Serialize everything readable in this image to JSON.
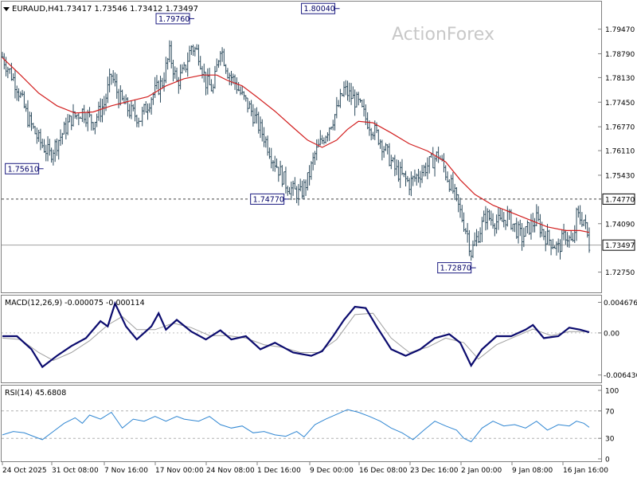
{
  "header": {
    "symbol_text": "EURAUD,H4",
    "ohlc_text": "1.73417 1.73546 1.73412 1.73497",
    "watermark": "ActionForex"
  },
  "colors": {
    "candles": "#2b4a5c",
    "ma": "#d21f1f",
    "macd_line": "#0b0b6e",
    "macd_signal": "#a0a0a0",
    "rsi": "#2f86d2",
    "frame": "#808080",
    "label_border": "#1a1a80"
  },
  "chart_data": [
    {
      "id": "price",
      "type": "candlestick",
      "yticks": [
        "1.79470",
        "1.78790",
        "1.78130",
        "1.77450",
        "1.76770",
        "1.76110",
        "1.75430",
        "1.74770",
        "1.74090",
        "1.73497",
        "1.72750"
      ],
      "ylim": [
        1.723,
        1.801
      ],
      "annotations": [
        {
          "text": "1.79760",
          "value": 1.7976,
          "position": "left"
        },
        {
          "text": "1.80040",
          "value": 1.8004,
          "position": "left"
        },
        {
          "text": "1.75610",
          "value": 1.7561,
          "position": "left"
        },
        {
          "text": "1.74770",
          "value": 1.7477,
          "position": "left"
        },
        {
          "text": "1.72870",
          "value": 1.7287,
          "position": "left"
        }
      ],
      "levels": [
        {
          "value": 1.7477,
          "label": "1.74770",
          "style": "dashed"
        },
        {
          "value": 1.73497,
          "label": "1.73497",
          "style": "solid"
        }
      ],
      "close_path": [
        [
          0,
          1.787
        ],
        [
          4,
          1.783
        ],
        [
          8,
          1.779
        ],
        [
          14,
          1.77
        ],
        [
          20,
          1.764
        ],
        [
          26,
          1.76
        ],
        [
          32,
          1.765
        ],
        [
          38,
          1.77
        ],
        [
          44,
          1.772
        ],
        [
          50,
          1.769
        ],
        [
          56,
          1.774
        ],
        [
          60,
          1.782
        ],
        [
          64,
          1.776
        ],
        [
          70,
          1.772
        ],
        [
          76,
          1.77
        ],
        [
          82,
          1.776
        ],
        [
          88,
          1.78
        ],
        [
          92,
          1.788
        ],
        [
          96,
          1.78
        ],
        [
          100,
          1.783
        ],
        [
          104,
          1.79
        ],
        [
          108,
          1.788
        ],
        [
          112,
          1.78
        ],
        [
          116,
          1.778
        ],
        [
          120,
          1.79
        ],
        [
          124,
          1.783
        ],
        [
          128,
          1.78
        ],
        [
          132,
          1.776
        ],
        [
          136,
          1.773
        ],
        [
          140,
          1.769
        ],
        [
          144,
          1.765
        ],
        [
          148,
          1.76
        ],
        [
          152,
          1.756
        ],
        [
          156,
          1.752
        ],
        [
          160,
          1.75
        ],
        [
          164,
          1.749
        ],
        [
          168,
          1.753
        ],
        [
          172,
          1.76
        ],
        [
          176,
          1.764
        ],
        [
          180,
          1.768
        ],
        [
          184,
          1.772
        ],
        [
          188,
          1.778
        ],
        [
          192,
          1.776
        ],
        [
          196,
          1.774
        ],
        [
          200,
          1.77
        ],
        [
          204,
          1.767
        ],
        [
          208,
          1.764
        ],
        [
          212,
          1.76
        ],
        [
          216,
          1.756
        ],
        [
          220,
          1.754
        ],
        [
          224,
          1.752
        ],
        [
          228,
          1.754
        ],
        [
          232,
          1.756
        ],
        [
          236,
          1.758
        ],
        [
          240,
          1.76
        ],
        [
          244,
          1.755
        ],
        [
          248,
          1.75
        ],
        [
          252,
          1.744
        ],
        [
          256,
          1.738
        ],
        [
          258,
          1.733
        ],
        [
          262,
          1.738
        ],
        [
          266,
          1.743
        ],
        [
          270,
          1.742
        ],
        [
          274,
          1.741
        ],
        [
          278,
          1.743
        ],
        [
          282,
          1.74
        ],
        [
          286,
          1.737
        ],
        [
          290,
          1.74
        ],
        [
          294,
          1.742
        ],
        [
          298,
          1.738
        ],
        [
          302,
          1.736
        ],
        [
          306,
          1.734
        ],
        [
          310,
          1.738
        ],
        [
          314,
          1.735
        ],
        [
          316,
          1.743
        ],
        [
          320,
          1.742
        ],
        [
          323,
          1.735
        ]
      ],
      "moving_average": [
        [
          0,
          1.7868
        ],
        [
          10,
          1.782
        ],
        [
          20,
          1.777
        ],
        [
          30,
          1.7735
        ],
        [
          40,
          1.7715
        ],
        [
          50,
          1.7718
        ],
        [
          60,
          1.7735
        ],
        [
          70,
          1.7748
        ],
        [
          80,
          1.776
        ],
        [
          90,
          1.779
        ],
        [
          100,
          1.781
        ],
        [
          110,
          1.782
        ],
        [
          118,
          1.782
        ],
        [
          124,
          1.7805
        ],
        [
          132,
          1.779
        ],
        [
          140,
          1.776
        ],
        [
          150,
          1.772
        ],
        [
          160,
          1.7675
        ],
        [
          168,
          1.764
        ],
        [
          176,
          1.762
        ],
        [
          184,
          1.764
        ],
        [
          190,
          1.767
        ],
        [
          196,
          1.7692
        ],
        [
          204,
          1.7688
        ],
        [
          214,
          1.766
        ],
        [
          224,
          1.763
        ],
        [
          234,
          1.761
        ],
        [
          244,
          1.758
        ],
        [
          252,
          1.753
        ],
        [
          260,
          1.749
        ],
        [
          270,
          1.746
        ],
        [
          280,
          1.744
        ],
        [
          290,
          1.742
        ],
        [
          300,
          1.74
        ],
        [
          310,
          1.739
        ],
        [
          318,
          1.739
        ],
        [
          323,
          1.7385
        ]
      ]
    },
    {
      "id": "macd",
      "type": "line",
      "title": "MACD(12,26,9) -0.000075 -0.000114",
      "yticks": [
        "0.004676",
        "0.00",
        "-0.006436"
      ],
      "ylim": [
        -0.0072,
        0.0051
      ],
      "series": [
        {
          "name": "MACD",
          "points": [
            [
              0,
              -0.0005
            ],
            [
              8,
              -0.0005
            ],
            [
              16,
              -0.0025
            ],
            [
              22,
              -0.0052
            ],
            [
              30,
              -0.0035
            ],
            [
              38,
              -0.002
            ],
            [
              46,
              -0.0008
            ],
            [
              54,
              0.0018
            ],
            [
              58,
              0.001
            ],
            [
              62,
              0.0045
            ],
            [
              68,
              0.001
            ],
            [
              74,
              -0.001
            ],
            [
              82,
              0.001
            ],
            [
              86,
              0.003
            ],
            [
              90,
              0.0005
            ],
            [
              96,
              0.002
            ],
            [
              104,
              0.0002
            ],
            [
              112,
              -0.001
            ],
            [
              120,
              0.0004
            ],
            [
              126,
              -0.001
            ],
            [
              134,
              -0.0005
            ],
            [
              142,
              -0.0025
            ],
            [
              150,
              -0.0015
            ],
            [
              160,
              -0.003
            ],
            [
              170,
              -0.0035
            ],
            [
              176,
              -0.0028
            ],
            [
              182,
              -0.0005
            ],
            [
              188,
              0.002
            ],
            [
              194,
              0.004
            ],
            [
              200,
              0.0038
            ],
            [
              206,
              0.001
            ],
            [
              214,
              -0.0025
            ],
            [
              222,
              -0.0035
            ],
            [
              230,
              -0.0025
            ],
            [
              238,
              -0.0008
            ],
            [
              246,
              -0.0002
            ],
            [
              252,
              -0.0015
            ],
            [
              258,
              -0.005
            ],
            [
              264,
              -0.0025
            ],
            [
              272,
              -0.0005
            ],
            [
              280,
              -0.0005
            ],
            [
              288,
              0.0005
            ],
            [
              292,
              0.0012
            ],
            [
              298,
              -0.0008
            ],
            [
              306,
              -0.0005
            ],
            [
              312,
              0.0008
            ],
            [
              318,
              0.0005
            ],
            [
              323,
              0.0001
            ]
          ]
        },
        {
          "name": "Signal",
          "points": [
            [
              0,
              -0.0008
            ],
            [
              10,
              -0.001
            ],
            [
              20,
              -0.003
            ],
            [
              28,
              -0.0042
            ],
            [
              38,
              -0.003
            ],
            [
              48,
              -0.0012
            ],
            [
              58,
              0.0012
            ],
            [
              66,
              0.0025
            ],
            [
              74,
              0.0005
            ],
            [
              84,
              0.0005
            ],
            [
              94,
              0.0015
            ],
            [
              104,
              0.0008
            ],
            [
              114,
              -0.0004
            ],
            [
              124,
              -0.0004
            ],
            [
              134,
              -0.0008
            ],
            [
              144,
              -0.0018
            ],
            [
              154,
              -0.0022
            ],
            [
              164,
              -0.003
            ],
            [
              174,
              -0.003
            ],
            [
              184,
              -0.001
            ],
            [
              194,
              0.0028
            ],
            [
              204,
              0.003
            ],
            [
              214,
              -0.0008
            ],
            [
              224,
              -0.003
            ],
            [
              234,
              -0.0022
            ],
            [
              244,
              -0.0008
            ],
            [
              254,
              -0.0015
            ],
            [
              262,
              -0.004
            ],
            [
              272,
              -0.0018
            ],
            [
              282,
              -0.0006
            ],
            [
              292,
              0.0006
            ],
            [
              302,
              -0.0004
            ],
            [
              312,
              0.0002
            ],
            [
              323,
              0.0002
            ]
          ]
        }
      ]
    },
    {
      "id": "rsi",
      "type": "line",
      "title": "RSI(14) 45.6808",
      "yticks": [
        "100",
        "70",
        "30",
        "0"
      ],
      "ylim": [
        0,
        100
      ],
      "levels": [
        70,
        30
      ],
      "series": [
        {
          "name": "RSI",
          "points": [
            [
              0,
              35
            ],
            [
              6,
              40
            ],
            [
              12,
              38
            ],
            [
              18,
              32
            ],
            [
              22,
              28
            ],
            [
              28,
              40
            ],
            [
              34,
              52
            ],
            [
              40,
              60
            ],
            [
              44,
              52
            ],
            [
              48,
              64
            ],
            [
              54,
              58
            ],
            [
              60,
              68
            ],
            [
              66,
              45
            ],
            [
              72,
              58
            ],
            [
              78,
              55
            ],
            [
              84,
              62
            ],
            [
              90,
              55
            ],
            [
              96,
              62
            ],
            [
              100,
              58
            ],
            [
              108,
              55
            ],
            [
              114,
              62
            ],
            [
              120,
              50
            ],
            [
              126,
              45
            ],
            [
              132,
              48
            ],
            [
              138,
              38
            ],
            [
              144,
              40
            ],
            [
              150,
              35
            ],
            [
              156,
              33
            ],
            [
              162,
              40
            ],
            [
              166,
              32
            ],
            [
              172,
              50
            ],
            [
              178,
              58
            ],
            [
              184,
              65
            ],
            [
              190,
              72
            ],
            [
              196,
              68
            ],
            [
              202,
              62
            ],
            [
              208,
              55
            ],
            [
              214,
              45
            ],
            [
              220,
              38
            ],
            [
              226,
              28
            ],
            [
              232,
              42
            ],
            [
              238,
              55
            ],
            [
              244,
              48
            ],
            [
              250,
              42
            ],
            [
              254,
              30
            ],
            [
              258,
              25
            ],
            [
              264,
              45
            ],
            [
              270,
              55
            ],
            [
              276,
              48
            ],
            [
              282,
              50
            ],
            [
              288,
              45
            ],
            [
              294,
              55
            ],
            [
              300,
              42
            ],
            [
              306,
              50
            ],
            [
              312,
              48
            ],
            [
              316,
              55
            ],
            [
              320,
              52
            ],
            [
              323,
              46
            ]
          ]
        }
      ]
    }
  ],
  "x_axis": {
    "ticks": [
      "24 Oct 2025",
      "31 Oct 08:00",
      "7 Nov 16:00",
      "17 Nov 00:00",
      "24 Nov 08:00",
      "1 Dec 16:00",
      "9 Dec 00:00",
      "16 Dec 08:00",
      "23 Dec 16:00",
      "2 Jan 00:00",
      "9 Jan 08:00",
      "16 Jan 16:00"
    ]
  }
}
